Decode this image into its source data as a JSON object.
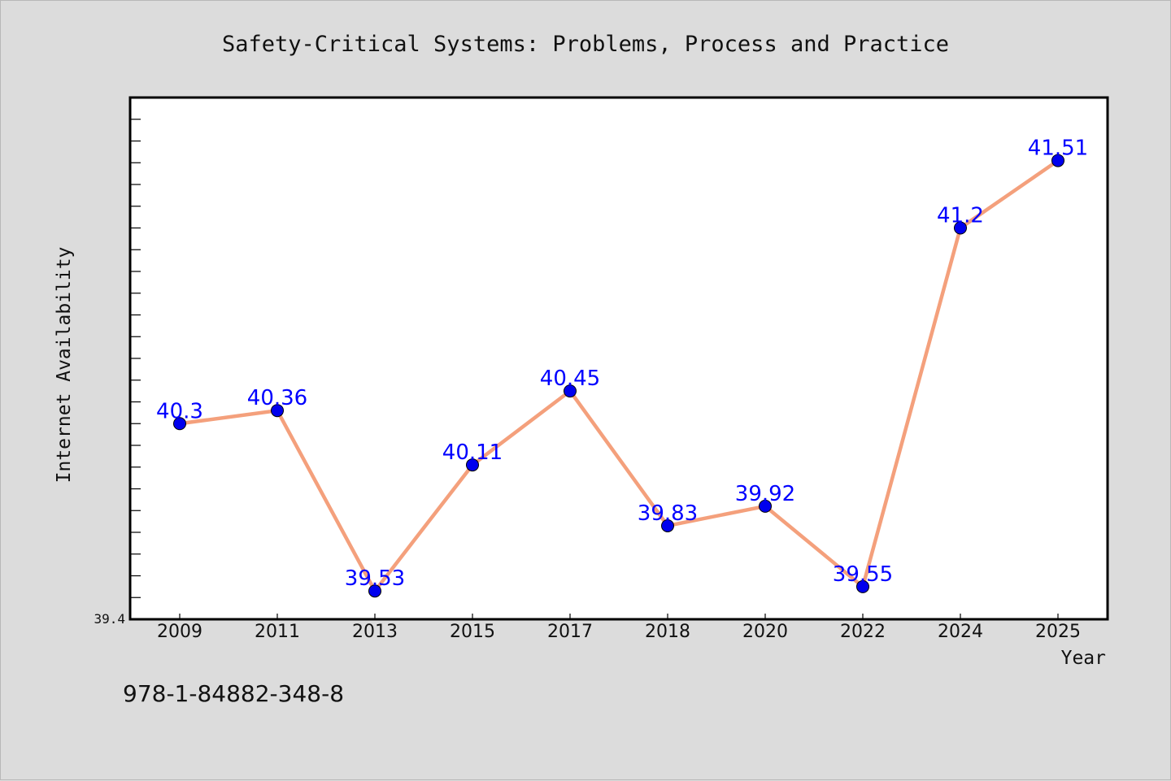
{
  "colors": {
    "background": "#dcdcdc",
    "plot_background": "#ffffff",
    "line": "#f4a07c",
    "marker": "#0000ee",
    "data_label": "#0000ff"
  },
  "footer": {
    "isbn": "978-1-84882-348-8"
  },
  "chart_data": {
    "type": "line",
    "title": "Safety-Critical Systems: Problems, Process and Practice",
    "xlabel": "Year",
    "ylabel": "Internet Availability",
    "categories": [
      "2009",
      "2011",
      "2013",
      "2015",
      "2017",
      "2018",
      "2020",
      "2022",
      "2024",
      "2025"
    ],
    "values": [
      40.3,
      40.36,
      39.53,
      40.11,
      40.45,
      39.83,
      39.92,
      39.55,
      41.2,
      41.51
    ],
    "data_labels": [
      "40.3",
      "40.36",
      "39.53",
      "40.11",
      "40.45",
      "39.83",
      "39.92",
      "39.55",
      "41.2",
      "41.51"
    ],
    "y_tick_labels": [
      "39.4"
    ],
    "ylim": [
      39.4,
      41.8
    ],
    "minor_tick_step": 0.1,
    "grid": false,
    "legend": "none",
    "markers": true
  }
}
